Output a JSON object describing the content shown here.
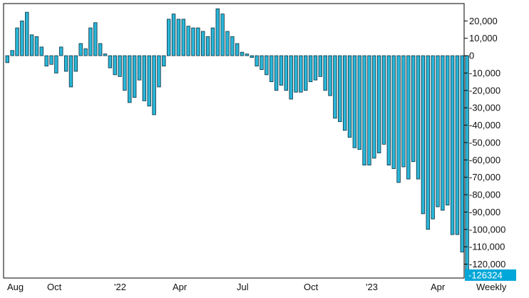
{
  "chart_data": {
    "type": "bar",
    "frequency_label": "Weekly",
    "x_tick_labels": [
      "Aug",
      "Oct",
      "'22",
      "Apr",
      "Jul",
      "Oct",
      "'23",
      "Apr"
    ],
    "y_ticks": [
      20000,
      10000,
      0,
      -10000,
      -20000,
      -30000,
      -40000,
      -50000,
      -60000,
      -70000,
      -80000,
      -90000,
      -100000,
      -110000,
      -120000
    ],
    "y_tick_labels": [
      "20,000",
      "10,000",
      "0",
      "-10,000",
      "-20,000",
      "-30,000",
      "-40,000",
      "-50,000",
      "-60,000",
      "-70,000",
      "-80,000",
      "-90,000",
      "-100,000",
      "-110,000",
      "-120,000"
    ],
    "ylim": [
      -128000,
      30000
    ],
    "last_value_label": "-126324",
    "values": [
      -4000,
      3000,
      16000,
      20000,
      25000,
      12000,
      11000,
      5000,
      -6000,
      -5000,
      -10000,
      5000,
      -9000,
      -18000,
      -9000,
      7000,
      4000,
      16000,
      19000,
      7000,
      1000,
      -7000,
      -11000,
      -12000,
      -20000,
      -27000,
      -24000,
      -14000,
      -26000,
      -29000,
      -34000,
      -18000,
      -6000,
      21000,
      24000,
      21000,
      21000,
      17000,
      16000,
      16000,
      14000,
      11000,
      16000,
      27000,
      24000,
      14000,
      11000,
      7000,
      2000,
      1000,
      -1000,
      -6000,
      -8000,
      -11000,
      -15000,
      -20000,
      -17000,
      -20000,
      -25000,
      -21000,
      -21000,
      -20000,
      -15000,
      -14000,
      -12000,
      -20000,
      -23000,
      -36000,
      -38000,
      -43000,
      -47000,
      -53000,
      -54000,
      -63000,
      -63000,
      -59000,
      -56000,
      -51000,
      -63000,
      -65000,
      -73000,
      -64000,
      -71000,
      -61000,
      -71000,
      -91000,
      -100000,
      -94000,
      -87000,
      -89000,
      -86000,
      -103000,
      -103000,
      -113000,
      -126324
    ]
  }
}
